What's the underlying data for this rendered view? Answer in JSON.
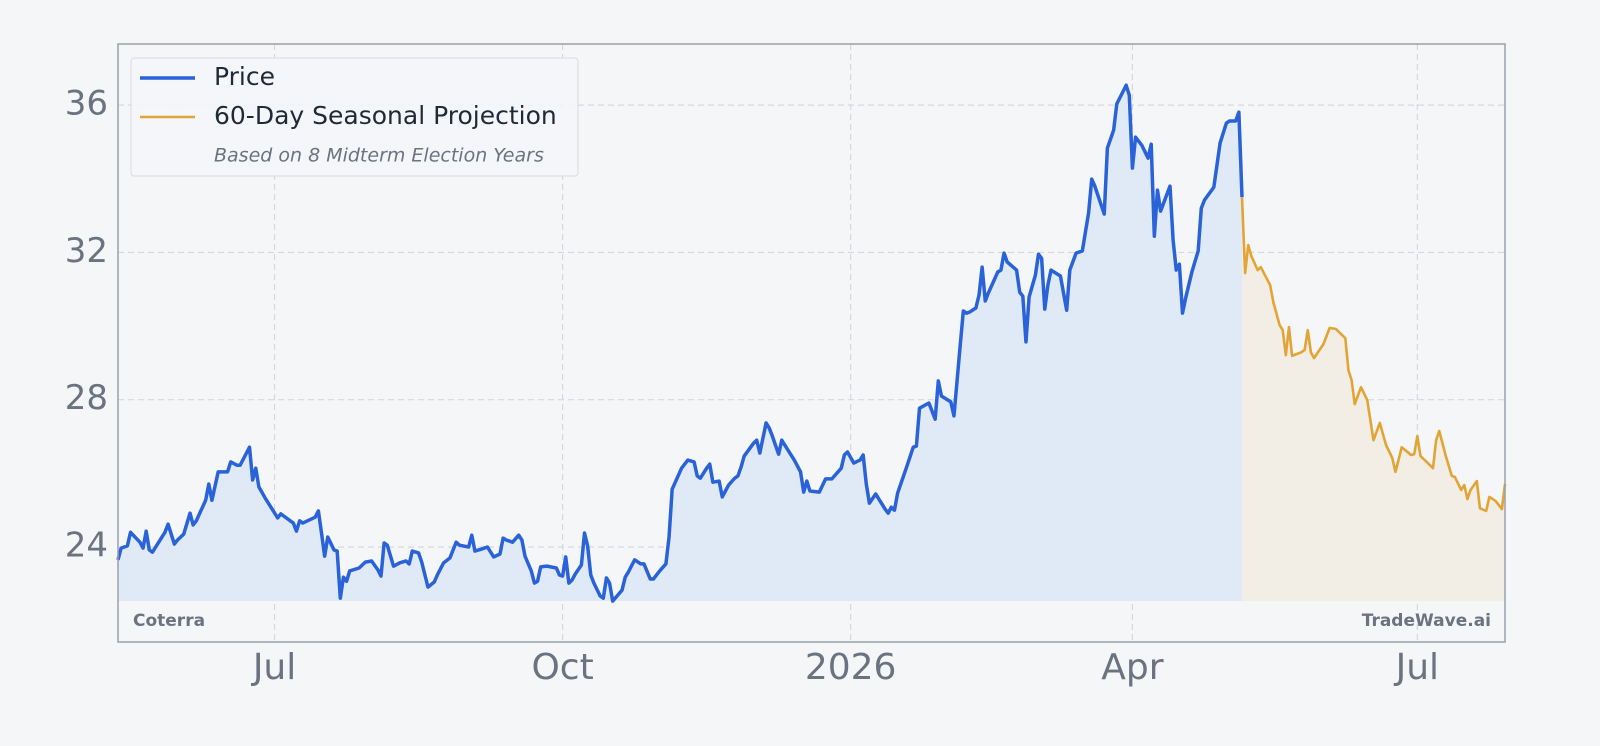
{
  "chart_data": {
    "type": "line",
    "legend": "upper left",
    "grid": true,
    "legend_note": "Based on 8 Midterm Election Years",
    "watermark_left": "Coterra",
    "watermark_right": "TradeWave.ai",
    "xlim": [
      -234,
      209
    ],
    "xticks": [
      {
        "value": -184,
        "label": "Jul"
      },
      {
        "value": -92,
        "label": "Oct"
      },
      {
        "value": 0,
        "label": "2026"
      },
      {
        "value": 90,
        "label": "Apr"
      },
      {
        "value": 181,
        "label": "Jul"
      }
    ],
    "ylim": [
      21.42,
      37.66
    ],
    "yticks": [
      24,
      28,
      32,
      36
    ],
    "series": [
      {
        "name": "Price",
        "color": "#2a62d9",
        "fill": "#dfeaf6",
        "x": [
          -234,
          -233,
          -231,
          -230,
          -227,
          -226,
          -225,
          -224,
          -223,
          -221,
          -219,
          -218,
          -216,
          -215,
          -213,
          -211,
          -210,
          -209,
          -206,
          -205,
          -204,
          -202,
          -199,
          -198,
          -196,
          -195,
          -192,
          -191,
          -190,
          -189,
          -187,
          -183,
          -182,
          -178,
          -177,
          -176,
          -175,
          -171,
          -170,
          -169,
          -168,
          -167,
          -165,
          -164,
          -163,
          -162,
          -161,
          -160,
          -157,
          -155,
          -153,
          -151,
          -150,
          -149,
          -148,
          -146,
          -144,
          -142,
          -141,
          -140,
          -138,
          -137,
          -135,
          -133,
          -132,
          -130,
          -128,
          -126,
          -125,
          -122,
          -121,
          -120,
          -118,
          -116,
          -114,
          -112,
          -111,
          -110,
          -108,
          -106,
          -105,
          -104,
          -102,
          -101,
          -100,
          -99,
          -97,
          -94,
          -93,
          -92,
          -91,
          -90,
          -89,
          -88,
          -86,
          -85,
          -84,
          -83,
          -82,
          -80,
          -79,
          -78,
          -77,
          -76,
          -73,
          -72,
          -71,
          -69,
          -67,
          -66,
          -64,
          -63,
          -61,
          -59,
          -58,
          -57,
          -55,
          -54,
          -52,
          -50,
          -49,
          -48,
          -46,
          -45,
          -44,
          -42,
          -41,
          -39,
          -37,
          -36,
          -35,
          -34,
          -31,
          -30,
          -29,
          -27,
          -26,
          -25,
          -23,
          -22,
          -20,
          -18,
          -16,
          -15,
          -14,
          -13,
          -10,
          -8,
          -6,
          -3,
          -2,
          -1,
          1,
          3,
          4,
          5,
          6,
          8,
          11,
          12,
          13,
          14,
          15,
          18,
          20,
          21,
          22,
          25,
          27,
          28,
          29,
          32,
          33,
          35,
          36,
          37,
          38,
          40,
          41,
          42,
          43,
          44,
          47,
          48,
          49,
          50,
          53,
          54,
          55,
          56,
          57,
          59,
          60,
          61,
          62,
          63,
          64,
          67,
          69,
          70,
          72,
          74,
          76,
          77,
          78,
          81,
          82,
          84,
          85,
          88,
          89,
          90,
          91,
          93,
          95,
          96,
          97,
          98,
          99,
          102,
          103,
          104,
          105,
          106,
          107,
          109,
          111,
          112,
          113,
          116,
          118,
          120,
          121,
          123,
          124,
          125
        ],
        "values": [
          23.65,
          23.97,
          24.03,
          24.4,
          24.13,
          23.97,
          24.43,
          23.92,
          23.86,
          24.13,
          24.4,
          24.62,
          24.08,
          24.19,
          24.35,
          24.92,
          24.6,
          24.71,
          25.27,
          25.71,
          25.27,
          26.04,
          26.04,
          26.31,
          26.22,
          26.22,
          26.71,
          25.82,
          26.14,
          25.63,
          25.33,
          24.79,
          24.9,
          24.65,
          24.43,
          24.71,
          24.65,
          24.81,
          24.98,
          24.38,
          23.75,
          24.27,
          23.92,
          23.89,
          22.61,
          23.18,
          23.07,
          23.35,
          23.43,
          23.59,
          23.62,
          23.38,
          23.21,
          24.11,
          24.05,
          23.48,
          23.57,
          23.62,
          23.54,
          23.89,
          23.84,
          23.59,
          22.91,
          23.05,
          23.24,
          23.57,
          23.7,
          24.13,
          24.05,
          24.0,
          24.32,
          23.89,
          23.94,
          24.0,
          23.73,
          23.81,
          24.24,
          24.19,
          24.13,
          24.32,
          24.19,
          23.75,
          23.35,
          23.02,
          23.07,
          23.46,
          23.48,
          23.43,
          23.24,
          23.21,
          23.73,
          23.02,
          23.1,
          23.26,
          23.51,
          24.38,
          24.03,
          23.24,
          23.02,
          22.67,
          22.61,
          23.16,
          23.02,
          22.53,
          22.83,
          23.18,
          23.32,
          23.65,
          23.54,
          23.54,
          23.13,
          23.13,
          23.35,
          23.54,
          24.27,
          25.57,
          25.95,
          26.14,
          26.36,
          26.31,
          25.93,
          25.87,
          26.14,
          26.25,
          25.76,
          25.79,
          25.36,
          25.68,
          25.87,
          25.93,
          26.17,
          26.47,
          26.82,
          26.9,
          26.55,
          27.37,
          27.23,
          27.01,
          26.52,
          26.9,
          26.63,
          26.36,
          26.04,
          25.49,
          25.79,
          25.52,
          25.49,
          25.85,
          25.85,
          26.14,
          26.5,
          26.58,
          26.28,
          26.36,
          26.5,
          25.71,
          25.19,
          25.44,
          25.03,
          24.92,
          25.08,
          25.0,
          25.46,
          26.2,
          26.71,
          26.74,
          27.77,
          27.91,
          27.47,
          28.51,
          28.1,
          27.94,
          27.56,
          29.48,
          30.41,
          30.35,
          30.38,
          30.49,
          30.84,
          31.6,
          30.68,
          30.9,
          31.47,
          31.52,
          31.98,
          31.74,
          31.52,
          30.92,
          30.81,
          29.57,
          30.79,
          31.38,
          31.95,
          31.84,
          30.46,
          31.11,
          31.52,
          31.36,
          30.43,
          31.52,
          31.98,
          32.04,
          33.07,
          33.99,
          33.8,
          33.04,
          34.83,
          35.32,
          36.03,
          36.54,
          36.27,
          34.29,
          35.13,
          34.91,
          34.56,
          34.94,
          32.44,
          33.69,
          33.12,
          33.8,
          32.33,
          31.52,
          31.68,
          30.35,
          30.76,
          31.47,
          32.04,
          33.2,
          33.42,
          33.77,
          34.97,
          35.51,
          35.57,
          35.57,
          35.81,
          33.5
        ]
      },
      {
        "name": "60-Day Seasonal Projection",
        "color": "#e3a436",
        "fill": "#f2ede5",
        "x": [
          125,
          126,
          127,
          128,
          130,
          131,
          134,
          135,
          137,
          138,
          139,
          140,
          141,
          144,
          145,
          146,
          147,
          148,
          151,
          153,
          155,
          158,
          159,
          160,
          161,
          163,
          165,
          167,
          169,
          171,
          173,
          174,
          175,
          176,
          179,
          180,
          181,
          182,
          184,
          186,
          187,
          188,
          190,
          192,
          193,
          195,
          196,
          197,
          198,
          200,
          201,
          203,
          204,
          206,
          208,
          209
        ],
        "values": [
          33.5,
          31.44,
          32.2,
          31.9,
          31.52,
          31.6,
          31.11,
          30.65,
          30.03,
          29.89,
          29.21,
          29.97,
          29.19,
          29.29,
          29.35,
          29.89,
          29.29,
          29.13,
          29.51,
          29.95,
          29.92,
          29.67,
          28.8,
          28.53,
          27.88,
          28.34,
          27.99,
          26.9,
          27.37,
          26.77,
          26.42,
          26.04,
          26.36,
          26.71,
          26.5,
          26.52,
          27.01,
          26.47,
          26.31,
          26.14,
          26.9,
          27.15,
          26.5,
          25.93,
          25.9,
          25.55,
          25.68,
          25.3,
          25.55,
          25.79,
          25.05,
          24.98,
          25.36,
          25.25,
          25.03,
          25.71
        ]
      }
    ]
  }
}
